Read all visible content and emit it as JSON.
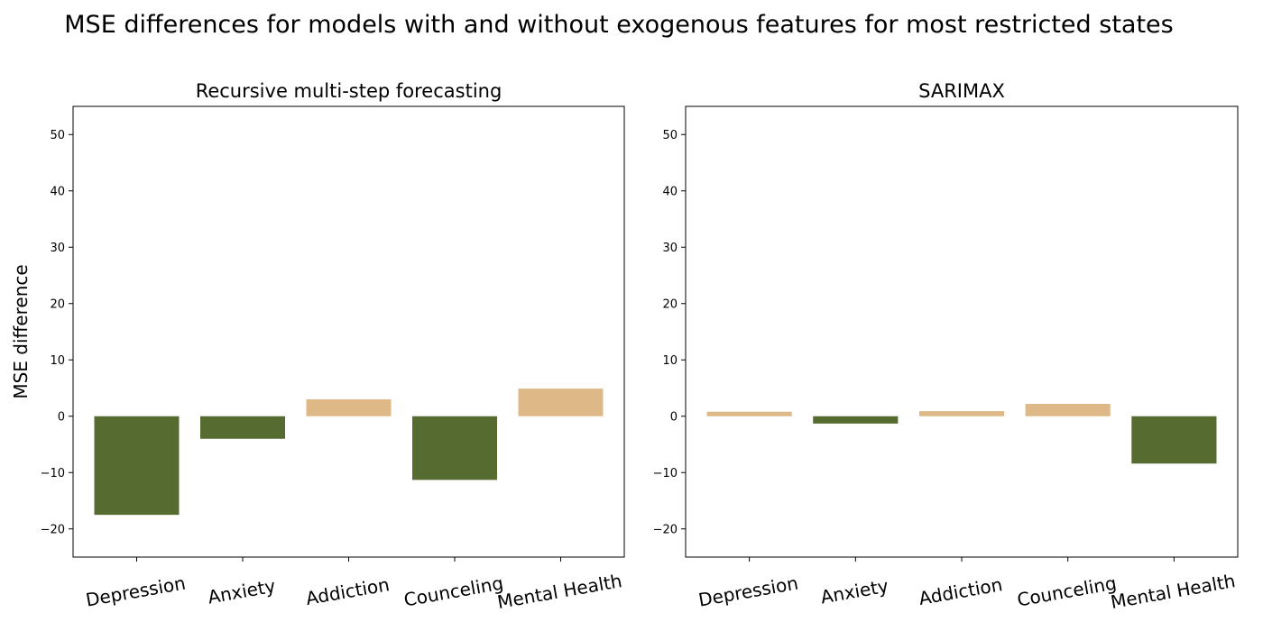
{
  "figure": {
    "title": "MSE differences for models with and without exogenous features for most restricted states",
    "ylabel": "MSE difference"
  },
  "colors": {
    "negative": "#556b2f",
    "positive": "#deb887"
  },
  "chart_data": [
    {
      "type": "bar",
      "title": "Recursive multi-step forecasting",
      "xlabel": "",
      "ylabel": "MSE difference",
      "categories": [
        "Depression",
        "Anxiety",
        "Addiction",
        "Counceling",
        "Mental Health"
      ],
      "values": [
        -17.5,
        -4.0,
        3.0,
        -11.3,
        4.9
      ],
      "ylim": [
        -25,
        55
      ],
      "yticks": [
        -20,
        -10,
        0,
        10,
        20,
        30,
        40,
        50
      ],
      "grid": false
    },
    {
      "type": "bar",
      "title": "SARIMAX",
      "xlabel": "",
      "ylabel": "",
      "categories": [
        "Depression",
        "Anxiety",
        "Addiction",
        "Counceling",
        "Mental Health"
      ],
      "values": [
        0.8,
        -1.3,
        0.9,
        2.2,
        -8.4
      ],
      "ylim": [
        -25,
        55
      ],
      "yticks": [
        -20,
        -10,
        0,
        10,
        20,
        30,
        40,
        50
      ],
      "grid": false
    }
  ]
}
